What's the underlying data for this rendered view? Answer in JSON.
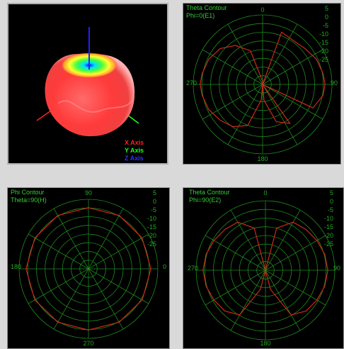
{
  "colors": {
    "grid": "#1f8a1f",
    "curve": "#cc2a1a",
    "text": "#33cc33",
    "background": "#000000",
    "x_axis": "#ff2020",
    "y_axis": "#20ff20",
    "z_axis": "#2020ff"
  },
  "view3d": {
    "legend": {
      "x": "X Axis",
      "y": "Y Axis",
      "z": "Z Axis"
    }
  },
  "ring_labels": [
    "5",
    "0",
    "-5",
    "-10",
    "-15",
    "-20",
    "-25"
  ],
  "panels": [
    {
      "id": "E1",
      "title_line1": "Theta Contour",
      "title_line2": "Phi=0(E1)",
      "angle_top": "0",
      "angle_left": "270",
      "angle_right": "90",
      "angle_bottom": "180"
    },
    {
      "id": "H1",
      "title_line1": "Phi Contour",
      "title_line2": "Theta=90(H)",
      "angle_top": "90",
      "angle_left": "180",
      "angle_right": "0",
      "angle_bottom": "270"
    },
    {
      "id": "E2",
      "title_line1": "Theta Contour",
      "title_line2": "Phi=90(E2)",
      "angle_top": "0",
      "angle_left": "270",
      "angle_right": "90",
      "angle_bottom": "180"
    }
  ],
  "chart_data": [
    {
      "type": "line",
      "coordinate_system": "polar",
      "title": "Theta Contour Phi=0(E1)",
      "r_ticks": [
        5,
        0,
        -5,
        -10,
        -15,
        -20,
        -25
      ],
      "rlim": [
        -30,
        5
      ],
      "angle_deg": [
        0,
        20,
        35,
        50,
        65,
        80,
        90,
        100,
        115,
        130,
        145,
        160,
        175,
        180,
        185,
        200,
        215,
        230,
        245,
        260,
        270,
        280,
        295,
        310,
        325,
        340,
        355
      ],
      "gain_db": [
        -30,
        -2,
        -3,
        -2,
        0,
        1,
        1.5,
        1,
        -2,
        -30,
        -6,
        -10,
        -22,
        -30,
        -22,
        -8,
        -4,
        -2,
        0,
        1,
        1.5,
        1,
        0,
        -2,
        -6,
        -12,
        -28
      ]
    },
    {
      "type": "line",
      "coordinate_system": "polar",
      "title": "Phi Contour Theta=90(H)",
      "r_ticks": [
        5,
        0,
        -5,
        -10,
        -15,
        -20,
        -25
      ],
      "rlim": [
        -30,
        5
      ],
      "angle_deg": [
        0,
        30,
        60,
        90,
        120,
        150,
        180,
        210,
        240,
        270,
        300,
        330
      ],
      "gain_db": [
        1.5,
        1.2,
        1.0,
        0.8,
        1.0,
        1.2,
        1.5,
        1.3,
        1.0,
        0.8,
        1.0,
        1.3
      ]
    },
    {
      "type": "line",
      "coordinate_system": "polar",
      "title": "Theta Contour Phi=90(E2)",
      "r_ticks": [
        5,
        0,
        -5,
        -10,
        -15,
        -20,
        -25
      ],
      "rlim": [
        -30,
        5
      ],
      "angle_deg": [
        0,
        15,
        30,
        45,
        60,
        75,
        90,
        105,
        120,
        135,
        150,
        165,
        180,
        195,
        210,
        225,
        240,
        255,
        270,
        285,
        300,
        315,
        330,
        345
      ],
      "gain_db": [
        -30,
        -8,
        -2,
        -1,
        0,
        1,
        1.5,
        1,
        0,
        -1,
        -4,
        -20,
        -30,
        -20,
        -4,
        -1,
        0,
        1,
        1.5,
        1,
        0,
        -1,
        -2,
        -8
      ]
    }
  ]
}
